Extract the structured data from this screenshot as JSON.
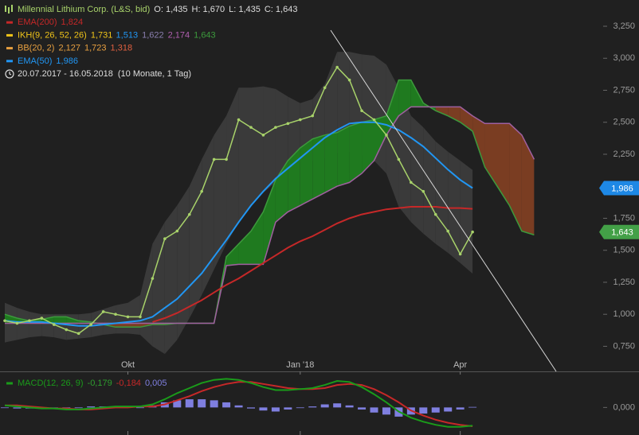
{
  "chart_data": [
    {
      "type": "line",
      "categories": [
        null,
        null,
        null,
        null,
        null,
        null,
        null,
        null,
        null,
        null,
        "Okt",
        null,
        null,
        null,
        null,
        null,
        null,
        null,
        null,
        null,
        null,
        null,
        null,
        null,
        "Jan '18",
        null,
        null,
        null,
        null,
        null,
        null,
        null,
        null,
        null,
        null,
        null,
        null,
        "Apr",
        null,
        null,
        null,
        null,
        null,
        null
      ],
      "ylim": [
        0.554,
        3.455
      ],
      "yticks": [
        {
          "value": 0.75,
          "label": "0,750"
        },
        {
          "value": 1,
          "label": "1,000"
        },
        {
          "value": 1.25,
          "label": "1,250"
        },
        {
          "value": 1.5,
          "label": "1,500"
        },
        {
          "value": 1.75,
          "label": "1,750"
        },
        {
          "value": 2,
          "label": "2,000"
        },
        {
          "value": 2.25,
          "label": "2,250"
        },
        {
          "value": 2.5,
          "label": "2,500"
        },
        {
          "value": 2.75,
          "label": "2,750"
        },
        {
          "value": 3,
          "label": "3,000"
        },
        {
          "value": 3.25,
          "label": "3,250"
        }
      ],
      "indicators": [
        {
          "kind": "price",
          "name": "Millennial Lithium Corp. (L&S, bid)",
          "color": "#a8d26a",
          "readout": [
            {
              "text": "O: 1,435",
              "color": "#dddddd"
            },
            {
              "text": "H: 1,670",
              "color": "#dddddd"
            },
            {
              "text": "L: 1,435",
              "color": "#dddddd"
            },
            {
              "text": "C: 1,643",
              "color": "#dddddd"
            }
          ],
          "values": [
            0.95,
            0.93,
            0.95,
            0.97,
            0.92,
            0.88,
            0.85,
            0.92,
            1.02,
            1.0,
            0.98,
            0.98,
            1.28,
            1.59,
            1.65,
            1.78,
            1.96,
            2.21,
            2.21,
            2.52,
            2.46,
            2.4,
            2.46,
            2.49,
            2.52,
            2.55,
            2.77,
            2.93,
            2.83,
            2.59,
            2.52,
            2.4,
            2.21,
            2.03,
            1.96,
            1.78,
            1.65,
            1.47,
            1.643,
            null,
            null,
            null,
            null,
            null
          ]
        },
        {
          "kind": "line",
          "name": "EMA(200)",
          "color": "#c62828",
          "readout": [
            {
              "text": "1,824",
              "color": "#c62828"
            }
          ],
          "values": [
            null,
            null,
            null,
            null,
            null,
            null,
            null,
            null,
            null,
            null,
            null,
            null,
            0.94,
            0.97,
            1.01,
            1.06,
            1.11,
            1.17,
            1.23,
            1.28,
            1.34,
            1.4,
            1.46,
            1.52,
            1.57,
            1.61,
            1.66,
            1.71,
            1.75,
            1.78,
            1.8,
            1.82,
            1.83,
            1.84,
            1.84,
            1.84,
            1.83,
            1.83,
            1.824,
            null,
            null,
            null,
            null,
            null
          ]
        },
        {
          "kind": "cloud",
          "name": "IKH(9, 26, 52, 26)",
          "color": "#f0c419",
          "readout": [
            {
              "text": "1,731",
              "color": "#f0c419"
            },
            {
              "text": "1,513",
              "color": "#2196f3"
            },
            {
              "text": "1,622",
              "color": "#8a7fb0"
            },
            {
              "text": "2,174",
              "color": "#b060b0"
            },
            {
              "text": "1,643",
              "color": "#3c9a3c"
            }
          ],
          "up_color": "#1f7a1f",
          "down_color": "#7a3d22",
          "a_color": "#3c9a3c",
          "b_color": "#a060a0",
          "span_a": [
            1.0,
            0.97,
            0.95,
            0.96,
            0.98,
            0.98,
            0.95,
            0.94,
            0.92,
            0.9,
            0.9,
            0.9,
            0.92,
            0.92,
            0.93,
            0.93,
            0.93,
            0.93,
            1.45,
            1.55,
            1.65,
            1.8,
            2.05,
            2.2,
            2.3,
            2.37,
            2.4,
            2.42,
            2.47,
            2.5,
            2.52,
            2.55,
            2.83,
            2.83,
            2.65,
            2.59,
            2.55,
            2.5,
            2.43,
            2.15,
            2.0,
            1.85,
            1.65,
            1.62
          ],
          "span_b": [
            0.93,
            0.93,
            0.93,
            0.93,
            0.93,
            0.93,
            0.93,
            0.93,
            0.93,
            0.93,
            0.93,
            0.93,
            0.93,
            0.93,
            0.93,
            0.93,
            0.93,
            0.93,
            1.38,
            1.39,
            1.39,
            1.39,
            1.72,
            1.8,
            1.85,
            1.9,
            1.95,
            2.0,
            2.03,
            2.1,
            2.2,
            2.4,
            2.55,
            2.62,
            2.62,
            2.62,
            2.62,
            2.62,
            2.55,
            2.49,
            2.49,
            2.49,
            2.4,
            2.21
          ]
        },
        {
          "kind": "band",
          "name": "BB(20, 2)",
          "color": "#e8a040",
          "fill": "#3a3a3a",
          "readout": [
            {
              "text": "2,127",
              "color": "#e8a040"
            },
            {
              "text": "1,723",
              "color": "#e8a040"
            },
            {
              "text": "1,318",
              "color": "#e06040"
            }
          ],
          "upper": [
            1.09,
            1.05,
            1.02,
            1.0,
            1.0,
            1.0,
            1.0,
            1.01,
            1.04,
            1.07,
            1.09,
            1.15,
            1.55,
            1.72,
            1.85,
            2.0,
            2.21,
            2.4,
            2.55,
            2.77,
            2.77,
            2.78,
            2.76,
            2.7,
            2.65,
            2.68,
            2.8,
            3.05,
            3.05,
            3.03,
            3.02,
            2.95,
            2.77,
            2.55,
            2.46,
            2.35,
            2.27,
            2.2,
            2.127,
            null,
            null,
            null,
            null,
            null
          ],
          "lower": [
            0.78,
            0.8,
            0.82,
            0.83,
            0.82,
            0.8,
            0.81,
            0.82,
            0.84,
            0.85,
            0.85,
            0.84,
            0.75,
            0.69,
            0.8,
            0.97,
            1.15,
            1.35,
            1.55,
            1.72,
            1.85,
            1.95,
            2.03,
            2.1,
            2.15,
            2.2,
            2.22,
            2.26,
            2.27,
            2.24,
            2.2,
            2.1,
            1.84,
            1.72,
            1.63,
            1.55,
            1.48,
            1.4,
            1.318,
            null,
            null,
            null,
            null,
            null
          ]
        },
        {
          "kind": "line",
          "name": "EMA(50)",
          "color": "#2196f3",
          "readout": [
            {
              "text": "1,986",
              "color": "#2196f3"
            }
          ],
          "values": [
            0.95,
            0.94,
            0.94,
            0.94,
            0.93,
            0.92,
            0.91,
            0.91,
            0.92,
            0.93,
            0.94,
            0.95,
            0.98,
            1.05,
            1.12,
            1.22,
            1.32,
            1.45,
            1.58,
            1.72,
            1.85,
            1.96,
            2.06,
            2.14,
            2.22,
            2.3,
            2.38,
            2.44,
            2.49,
            2.5,
            2.5,
            2.48,
            2.44,
            2.38,
            2.31,
            2.22,
            2.13,
            2.05,
            1.986,
            null,
            null,
            null,
            null,
            null
          ]
        }
      ],
      "period": "20.07.2017 - 16.05.2018",
      "period_note": "(10 Monate, 1 Tag)",
      "price_badges": [
        {
          "value": 1.986,
          "label": "1,986",
          "color": "#1e88e5"
        },
        {
          "value": 1.643,
          "label": "1,643",
          "color": "#43a047"
        }
      ]
    },
    {
      "type": "line",
      "title": "MACD(12, 26, 9)",
      "color": "#1a9b1a",
      "readout": [
        {
          "text": "-0,179",
          "color": "#2e9e2e"
        },
        {
          "text": "-0,184",
          "color": "#c62828"
        },
        {
          "text": "0,005",
          "color": "#7f7fe0"
        }
      ],
      "ylim": [
        -0.27,
        0.33
      ],
      "yticks": [
        {
          "value": 0,
          "label": "0,000"
        }
      ],
      "series": [
        {
          "kind": "histogram",
          "color": "#7f7fe0",
          "values": [
            0,
            -0.01,
            -0.01,
            -0.01,
            0,
            -0.01,
            0,
            0.01,
            0.01,
            0.01,
            0.01,
            0,
            0.02,
            0.05,
            0.07,
            0.08,
            0.08,
            0.07,
            0.05,
            0.02,
            -0.01,
            -0.03,
            -0.04,
            -0.02,
            0,
            0.01,
            0.03,
            0.04,
            0.02,
            -0.02,
            -0.05,
            -0.07,
            -0.09,
            -0.07,
            -0.06,
            -0.05,
            -0.04,
            -0.02,
            0.005
          ]
        },
        {
          "kind": "line",
          "color": "#c62828",
          "values": [
            0.02,
            0.02,
            0.01,
            0,
            -0.01,
            -0.01,
            -0.02,
            -0.02,
            -0.01,
            0,
            0,
            0.01,
            0.01,
            0.03,
            0.07,
            0.11,
            0.16,
            0.2,
            0.23,
            0.25,
            0.25,
            0.23,
            0.21,
            0.19,
            0.18,
            0.18,
            0.19,
            0.22,
            0.23,
            0.22,
            0.18,
            0.12,
            0.05,
            -0.03,
            -0.08,
            -0.12,
            -0.15,
            -0.17,
            -0.184
          ]
        },
        {
          "kind": "line",
          "color": "#1a9b1a",
          "values": [
            0.02,
            0.01,
            0,
            -0.01,
            -0.01,
            -0.02,
            -0.02,
            -0.01,
            0,
            0.01,
            0.01,
            0.01,
            0.03,
            0.08,
            0.14,
            0.19,
            0.24,
            0.27,
            0.28,
            0.27,
            0.24,
            0.2,
            0.17,
            0.17,
            0.18,
            0.19,
            0.22,
            0.26,
            0.25,
            0.2,
            0.13,
            0.05,
            -0.04,
            -0.1,
            -0.14,
            -0.17,
            -0.19,
            -0.19,
            -0.179
          ]
        }
      ]
    }
  ]
}
